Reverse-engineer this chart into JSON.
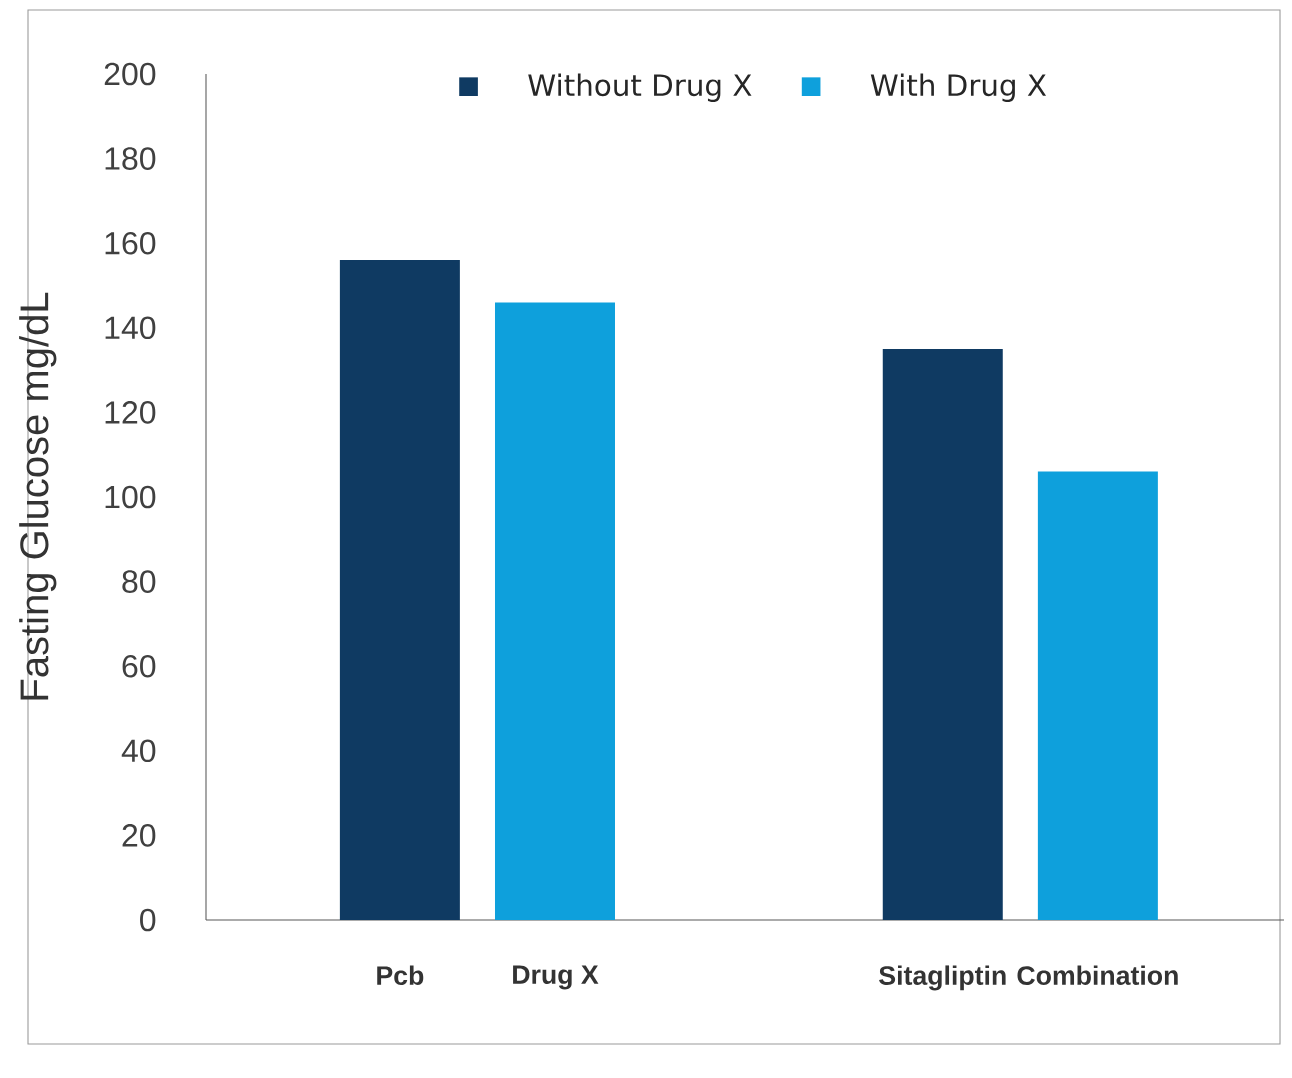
{
  "chart_data": {
    "type": "bar",
    "ylabel": "Fasting Glucose mg/dL",
    "categories": [
      "Pcb",
      "Drug X",
      "Sitagliptin",
      "Combination"
    ],
    "series": [
      {
        "name": "Without Drug X",
        "color": "#0f3a62",
        "values": [
          156,
          null,
          135,
          null
        ]
      },
      {
        "name": "With Drug X",
        "color": "#0ea0dc",
        "values": [
          null,
          146,
          null,
          106
        ]
      }
    ],
    "ylim": [
      0,
      200
    ],
    "yticks": [
      0,
      20,
      40,
      60,
      80,
      100,
      120,
      140,
      160,
      180,
      200
    ],
    "grid": false,
    "legend": "top"
  }
}
